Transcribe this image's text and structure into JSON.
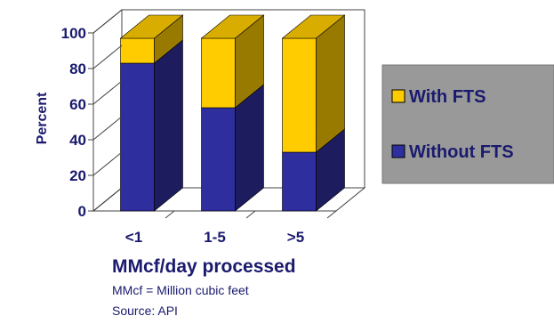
{
  "chart_data": {
    "type": "bar",
    "stacked": true,
    "three_d": true,
    "categories": [
      "<1",
      "1-5",
      ">5"
    ],
    "series": [
      {
        "name": "Without FTS",
        "values": [
          83,
          58,
          33
        ],
        "color": "#2e2e9e"
      },
      {
        "name": "With FTS",
        "values": [
          14,
          39,
          64
        ],
        "color": "#ffcc00"
      }
    ],
    "xlabel": "MMcf/day processed",
    "ylabel": "Percent",
    "ylim": [
      0,
      100
    ],
    "yticks": [
      0,
      20,
      40,
      60,
      80,
      100
    ],
    "grid": false,
    "legend_position": "right",
    "legend_background": "#999999",
    "notes": [
      "MMcf = Million cubic feet",
      "Source: API"
    ]
  }
}
